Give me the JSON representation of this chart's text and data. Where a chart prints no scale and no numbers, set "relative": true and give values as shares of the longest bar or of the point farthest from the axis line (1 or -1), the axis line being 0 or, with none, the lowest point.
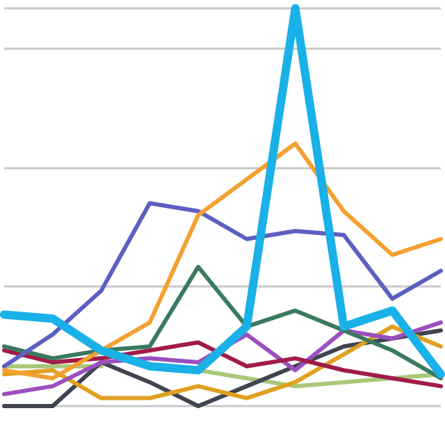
{
  "chart_data": {
    "type": "line",
    "relative": true,
    "grid": "y",
    "marker": "none",
    "line_style": "solid",
    "categories": [
      null,
      null,
      null,
      null,
      null,
      null,
      null,
      null,
      null,
      null
    ],
    "series": [
      {
        "color": "#a8c878",
        "values": [
          0.1,
          0.1,
          0.1,
          null,
          0.09,
          0.07,
          0.05,
          0.06,
          0.07,
          0.08
        ]
      },
      {
        "color": "#404450",
        "values": [
          0,
          0,
          0.11,
          0.06,
          0,
          0.05,
          0.1,
          0.15,
          0.17,
          0.19
        ]
      },
      {
        "color": "#e0a020",
        "values": [
          0.08,
          0.09,
          0.02,
          0.02,
          0.05,
          0.02,
          0.06,
          0.13,
          0.2,
          0.15
        ]
      },
      {
        "color": "#9b4fbf",
        "values": [
          0.03,
          0.05,
          0.11,
          0.12,
          0.11,
          0.18,
          0.09,
          0.19,
          0.17,
          0.21
        ]
      },
      {
        "color": "#a01c4a",
        "values": [
          0.14,
          0.11,
          0.12,
          0.14,
          0.16,
          0.1,
          0.12,
          0.09,
          0.07,
          0.05
        ]
      },
      {
        "color": "#3a7a5e",
        "values": [
          0.15,
          0.12,
          0.14,
          0.15,
          0.35,
          0.2,
          0.24,
          0.19,
          0.14,
          0.07
        ]
      },
      {
        "color": "#5b60c0",
        "values": [
          0.1,
          0.18,
          0.29,
          0.51,
          0.49,
          0.42,
          0.44,
          0.43,
          0.27,
          0.34
        ]
      },
      {
        "color": "#f4a030",
        "values": [
          0.09,
          0.07,
          0.14,
          0.21,
          0.48,
          0.57,
          0.66,
          0.49,
          0.38,
          0.42
        ]
      },
      {
        "color": "#1ab0e8",
        "values": [
          0.23,
          0.22,
          0.14,
          0.1,
          0.09,
          0.2,
          1,
          0.2,
          0.24,
          0.08
        ]
      }
    ]
  }
}
